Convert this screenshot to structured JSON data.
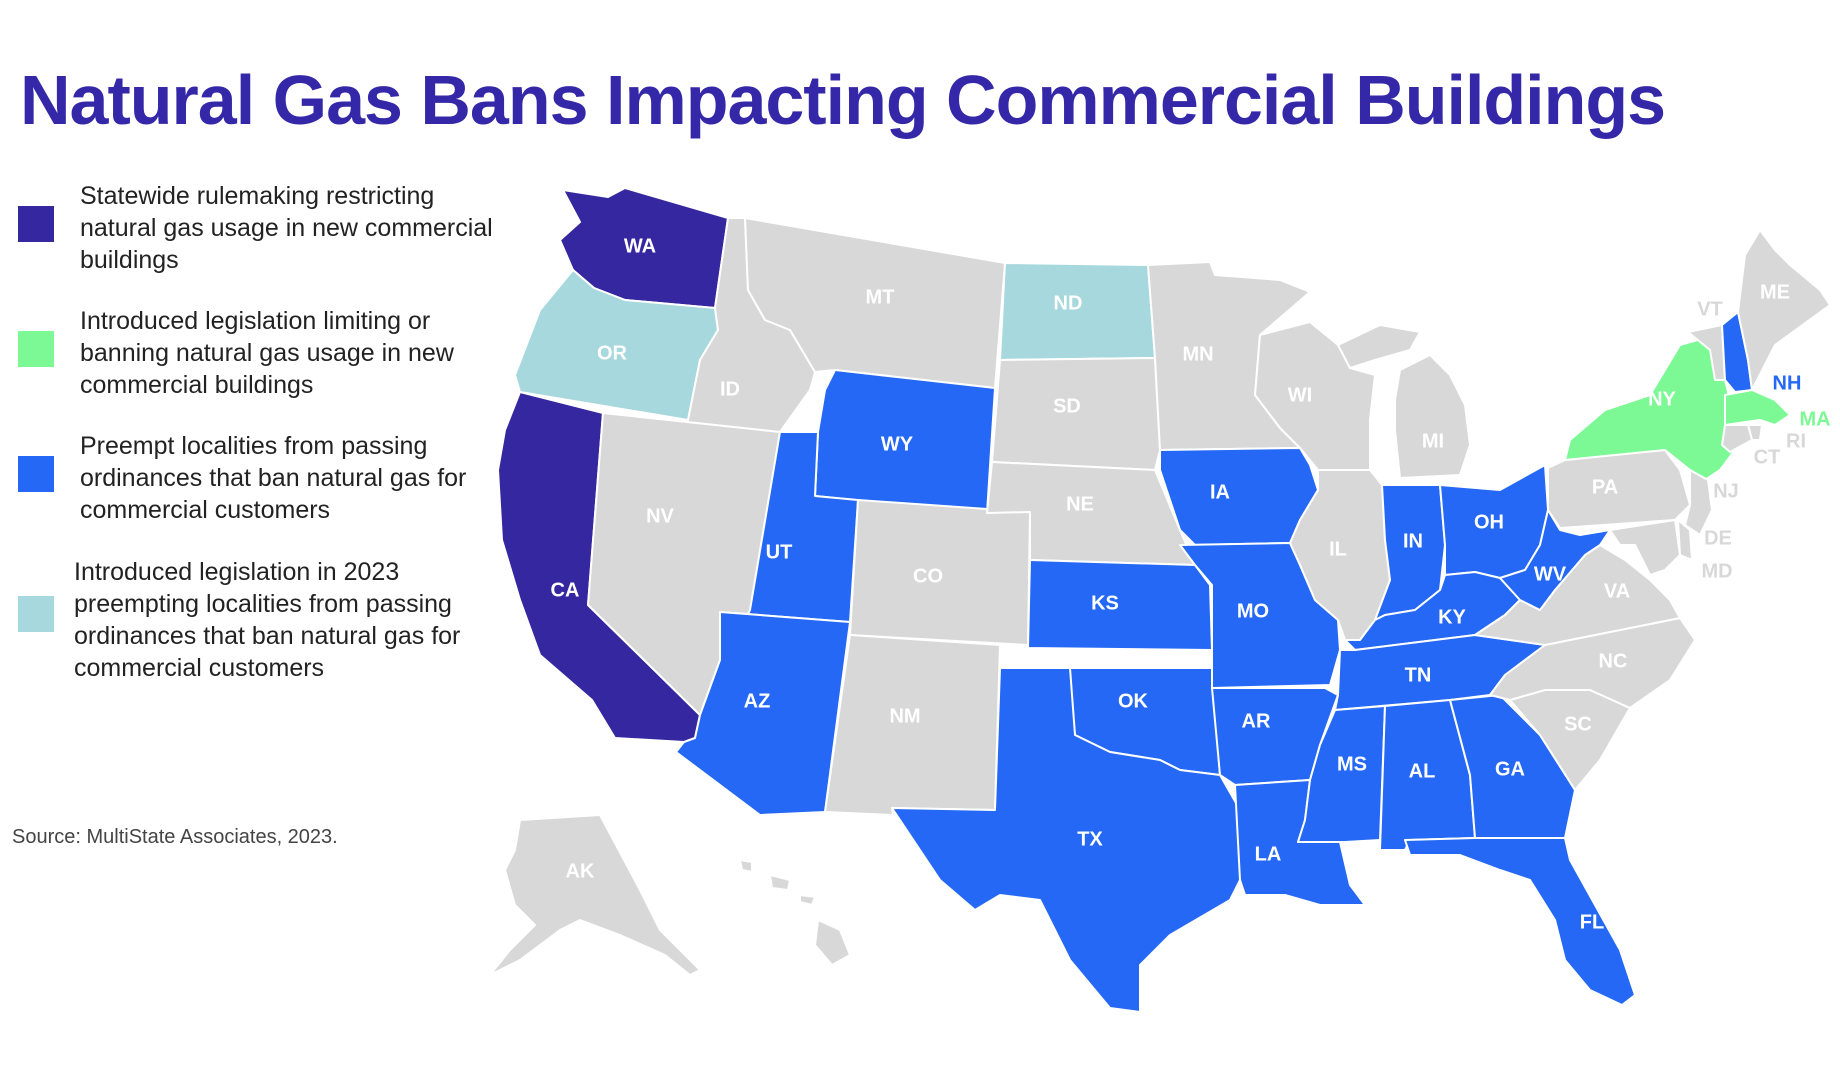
{
  "title": "Natural Gas Bans Impacting Commercial Buildings",
  "source": "Source: MultiState Associates, 2023.",
  "colors": {
    "statewide": "#35279f",
    "introduced": "#7cf995",
    "preempt": "#2468f5",
    "introduced2023": "#a7d8dd",
    "none": "#d8d8d8",
    "label_light": "#ffffff",
    "label_dim": "#f4f4f4"
  },
  "legend": [
    {
      "category": "statewide",
      "text": "Statewide rulemaking restricting natural gas usage in new commercial buildings"
    },
    {
      "category": "introduced",
      "text": "Introduced legislation limiting or banning natural gas usage in new commercial buildings"
    },
    {
      "category": "preempt",
      "text": "Preempt localities from passing ordinances that ban natural gas for commercial customers"
    },
    {
      "category": "introduced2023",
      "text": "Introduced legislation in 2023 preempting localities from passing ordinances that ban natural gas for commercial customers"
    }
  ],
  "states": [
    {
      "abbr": "WA",
      "category": "statewide"
    },
    {
      "abbr": "OR",
      "category": "introduced2023"
    },
    {
      "abbr": "CA",
      "category": "statewide"
    },
    {
      "abbr": "ID",
      "category": "none"
    },
    {
      "abbr": "NV",
      "category": "none"
    },
    {
      "abbr": "MT",
      "category": "none"
    },
    {
      "abbr": "WY",
      "category": "preempt"
    },
    {
      "abbr": "UT",
      "category": "preempt"
    },
    {
      "abbr": "AZ",
      "category": "preempt"
    },
    {
      "abbr": "CO",
      "category": "none"
    },
    {
      "abbr": "NM",
      "category": "none"
    },
    {
      "abbr": "ND",
      "category": "introduced2023"
    },
    {
      "abbr": "SD",
      "category": "none"
    },
    {
      "abbr": "NE",
      "category": "none"
    },
    {
      "abbr": "KS",
      "category": "preempt"
    },
    {
      "abbr": "OK",
      "category": "preempt"
    },
    {
      "abbr": "TX",
      "category": "preempt"
    },
    {
      "abbr": "MN",
      "category": "none"
    },
    {
      "abbr": "IA",
      "category": "preempt"
    },
    {
      "abbr": "MO",
      "category": "preempt"
    },
    {
      "abbr": "AR",
      "category": "preempt"
    },
    {
      "abbr": "LA",
      "category": "preempt"
    },
    {
      "abbr": "WI",
      "category": "none"
    },
    {
      "abbr": "IL",
      "category": "none"
    },
    {
      "abbr": "MI",
      "category": "none"
    },
    {
      "abbr": "IN",
      "category": "preempt"
    },
    {
      "abbr": "OH",
      "category": "preempt"
    },
    {
      "abbr": "KY",
      "category": "preempt"
    },
    {
      "abbr": "TN",
      "category": "preempt"
    },
    {
      "abbr": "MS",
      "category": "preempt"
    },
    {
      "abbr": "AL",
      "category": "preempt"
    },
    {
      "abbr": "GA",
      "category": "preempt"
    },
    {
      "abbr": "FL",
      "category": "preempt"
    },
    {
      "abbr": "SC",
      "category": "none"
    },
    {
      "abbr": "NC",
      "category": "none"
    },
    {
      "abbr": "VA",
      "category": "none"
    },
    {
      "abbr": "WV",
      "category": "preempt"
    },
    {
      "abbr": "PA",
      "category": "none"
    },
    {
      "abbr": "NY",
      "category": "introduced"
    },
    {
      "abbr": "VT",
      "category": "none"
    },
    {
      "abbr": "NH",
      "category": "preempt"
    },
    {
      "abbr": "ME",
      "category": "none"
    },
    {
      "abbr": "MA",
      "category": "introduced"
    },
    {
      "abbr": "RI",
      "category": "none"
    },
    {
      "abbr": "CT",
      "category": "none"
    },
    {
      "abbr": "NJ",
      "category": "none"
    },
    {
      "abbr": "DE",
      "category": "none"
    },
    {
      "abbr": "MD",
      "category": "none"
    },
    {
      "abbr": "AK",
      "category": "none"
    },
    {
      "abbr": "HI",
      "category": "none"
    }
  ]
}
